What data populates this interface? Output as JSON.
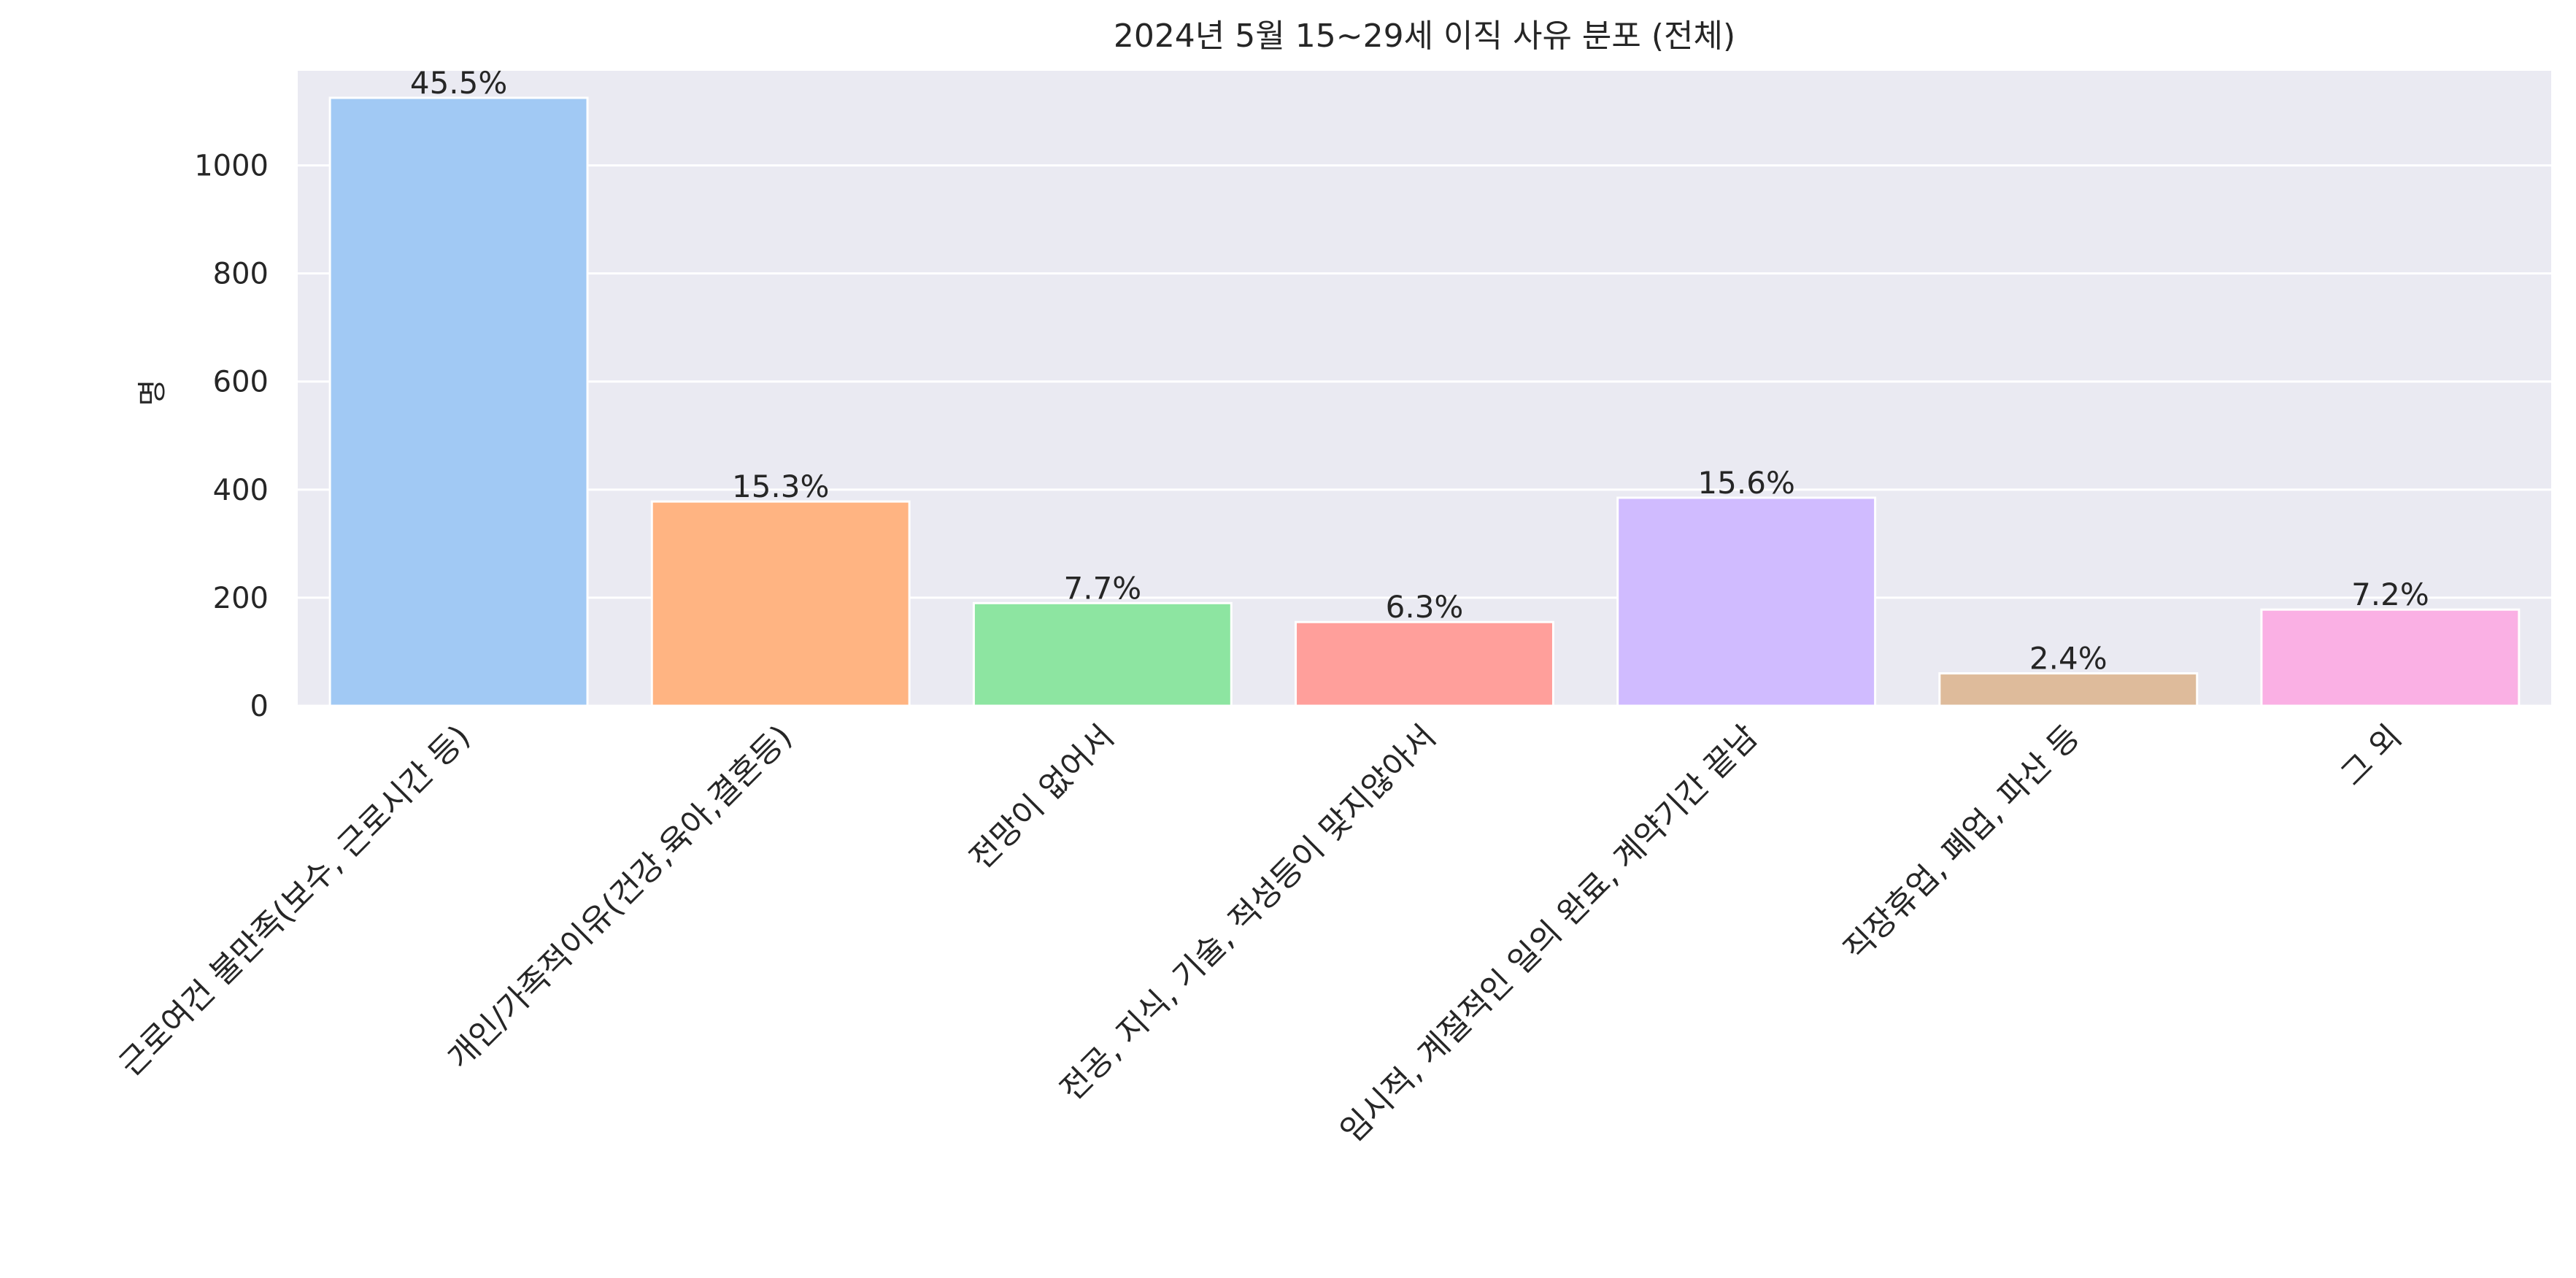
{
  "chart_data": {
    "type": "bar",
    "title": "2024년 5월 15~29세 이직 사유 분포 (전체)",
    "xlabel": "",
    "ylabel": "명",
    "ylim": [
      0,
      1175
    ],
    "yticks": [
      0,
      200,
      400,
      600,
      800,
      1000
    ],
    "grid": true,
    "categories": [
      "근로여건 불만족(보수, 근로시간 등)",
      "개인/가족적이유(건강,육아,결혼등)",
      "전망이 없어서",
      "전공, 지식, 기술, 적성등이 맞지않아서",
      "임시적, 계절적인 일의 완료, 계약기간 끝남",
      "직장휴업, 폐업, 파산 등",
      "그 외"
    ],
    "values": [
      1125,
      378,
      190,
      155,
      385,
      60,
      178
    ],
    "data_labels": [
      "45.5%",
      "15.3%",
      "7.7%",
      "6.3%",
      "15.6%",
      "2.4%",
      "7.2%"
    ],
    "colors": [
      "#a1c9f4",
      "#ffb482",
      "#8de5a1",
      "#ff9f9b",
      "#d0bbff",
      "#debb9b",
      "#fab0e4"
    ],
    "plot_background": "#eaeaf2",
    "grid_color": "#ffffff"
  }
}
